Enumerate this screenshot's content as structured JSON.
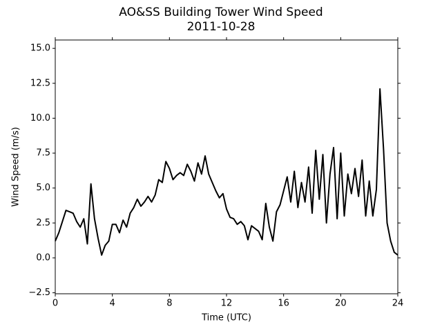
{
  "chart_data": {
    "type": "line",
    "title": "AO&SS Building Tower Wind Speed",
    "subtitle": "2011-10-28",
    "x_label": "Time (UTC)",
    "y_label": "Wind Speed (m/s)",
    "x": [
      0,
      0.25,
      0.5,
      0.75,
      1,
      1.25,
      1.5,
      1.75,
      2,
      2.25,
      2.5,
      2.75,
      3,
      3.25,
      3.5,
      3.75,
      4,
      4.25,
      4.5,
      4.75,
      5,
      5.25,
      5.5,
      5.75,
      6,
      6.25,
      6.5,
      6.75,
      7,
      7.25,
      7.5,
      7.75,
      8,
      8.25,
      8.5,
      8.75,
      9,
      9.25,
      9.5,
      9.75,
      10,
      10.25,
      10.5,
      10.75,
      11,
      11.25,
      11.5,
      11.75,
      12,
      12.25,
      12.5,
      12.75,
      13,
      13.25,
      13.5,
      13.75,
      14,
      14.25,
      14.5,
      14.75,
      15,
      15.25,
      15.5,
      15.75,
      16,
      16.25,
      16.5,
      16.75,
      17,
      17.25,
      17.5,
      17.75,
      18,
      18.25,
      18.5,
      18.75,
      19,
      19.25,
      19.5,
      19.75,
      20,
      20.25,
      20.5,
      20.75,
      21,
      21.25,
      21.5,
      21.75,
      22,
      22.25,
      22.5,
      22.75,
      23,
      23.25,
      23.5,
      23.75,
      24
    ],
    "series": [
      {
        "name": "Wind Speed",
        "color": "#000000",
        "values": [
          1.2,
          1.8,
          2.6,
          3.4,
          3.3,
          3.2,
          2.6,
          2.2,
          2.8,
          1.0,
          5.3,
          2.8,
          1.4,
          0.2,
          0.9,
          1.2,
          2.4,
          2.4,
          1.8,
          2.7,
          2.2,
          3.2,
          3.6,
          4.2,
          3.7,
          4.0,
          4.4,
          4.0,
          4.5,
          5.6,
          5.4,
          6.9,
          6.4,
          5.6,
          5.9,
          6.1,
          5.9,
          6.7,
          6.2,
          5.5,
          6.8,
          6.0,
          7.3,
          6.0,
          5.4,
          4.8,
          4.3,
          4.6,
          3.5,
          2.9,
          2.8,
          2.4,
          2.6,
          2.3,
          1.3,
          2.3,
          2.1,
          1.9,
          1.3,
          3.9,
          2.2,
          1.2,
          3.3,
          3.8,
          4.8,
          5.8,
          4.0,
          6.2,
          3.6,
          5.4,
          4.0,
          6.5,
          3.2,
          7.7,
          4.2,
          7.4,
          2.5,
          6.0,
          7.9,
          2.8,
          7.5,
          3.0,
          6.0,
          4.6,
          6.4,
          4.4,
          7.0,
          3.0,
          5.5,
          3.0,
          4.9,
          12.1,
          7.8,
          2.5,
          1.2,
          0.4,
          0.2
        ]
      }
    ],
    "xlim": [
      0,
      24
    ],
    "ylim": [
      -2.57,
      15.6
    ],
    "xticks": [
      0,
      4,
      8,
      12,
      16,
      20,
      24
    ],
    "yticks": [
      {
        "value": -2.5,
        "label": "−2.5"
      },
      {
        "value": 0,
        "label": "0.0"
      },
      {
        "value": 2.5,
        "label": "2.5"
      },
      {
        "value": 5,
        "label": "5.0"
      },
      {
        "value": 7.5,
        "label": "7.5"
      },
      {
        "value": 10,
        "label": "10.0"
      },
      {
        "value": 12.5,
        "label": "12.5"
      },
      {
        "value": 15,
        "label": "15.0"
      }
    ]
  }
}
